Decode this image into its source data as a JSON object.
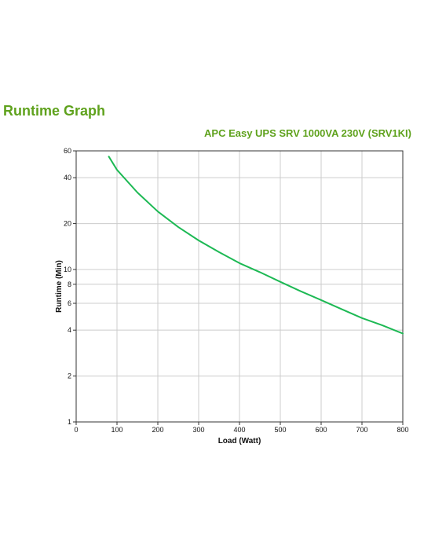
{
  "header": {
    "title": "Runtime Graph"
  },
  "chart_data": {
    "type": "line",
    "title": "APC Easy UPS SRV 1000VA 230V (SRV1KI)",
    "xlabel": "Load (Watt)",
    "ylabel": "Runtime (Min)",
    "xlim": [
      0,
      800
    ],
    "ylim": [
      1,
      60
    ],
    "yscale": "log",
    "grid": true,
    "xticks": [
      0,
      100,
      200,
      300,
      400,
      500,
      600,
      700,
      800
    ],
    "yticks": [
      1,
      2,
      4,
      6,
      8,
      10,
      20,
      40,
      60
    ],
    "series": [
      {
        "color": "#1db954",
        "x": [
          80,
          100,
          150,
          200,
          250,
          300,
          350,
          400,
          450,
          500,
          550,
          600,
          650,
          700,
          750,
          800
        ],
        "y": [
          55,
          45,
          32,
          24,
          19,
          15.5,
          13,
          11,
          9.6,
          8.3,
          7.2,
          6.3,
          5.5,
          4.8,
          4.3,
          3.8
        ]
      }
    ]
  },
  "colors": {
    "accent": "#5fa21d",
    "grid": "#cccccc",
    "axis": "#333333"
  }
}
